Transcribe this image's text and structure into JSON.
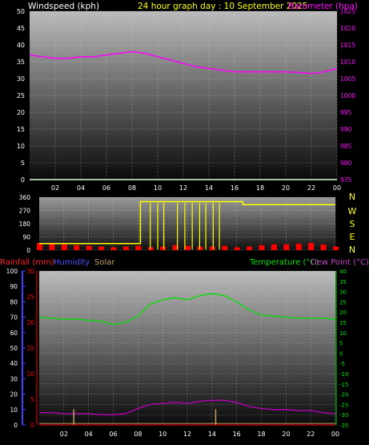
{
  "header": {
    "left_label": "Windspeed (kph)",
    "center_label": "24 hour graph day : 10 September 2025",
    "right_label": "Barometer (hpa)"
  },
  "colors": {
    "wind": "#ffffff",
    "barometer": "#ff00ff",
    "header_center": "#ffff00",
    "direction": "#ffff00",
    "rain": "#ff0000",
    "humidity": "#4040ff",
    "solar": "#c0a060",
    "temperature": "#00e000",
    "dewpoint": "#c000c0"
  },
  "x_ticks": [
    "02",
    "04",
    "06",
    "08",
    "10",
    "12",
    "14",
    "16",
    "18",
    "20",
    "22",
    "00"
  ],
  "compass_labels": [
    "N",
    "W",
    "S",
    "E",
    "N"
  ],
  "legend2": {
    "rainfall": "Rainfall (mm)",
    "humidity": "Humidity",
    "solar": "Solar",
    "temperature": "Temperature (°C)",
    "dewpoint": "Dew Point (°C)"
  },
  "chart_data": [
    {
      "type": "line",
      "title": "24 hour graph day : 10 September 2025",
      "xlabel": "",
      "ylabel": "Windspeed (kph)",
      "y2label": "Barometer (hpa)",
      "x_range_hours": [
        0,
        24
      ],
      "ylim": [
        0,
        50
      ],
      "y_ticks": [
        0,
        5,
        10,
        15,
        20,
        25,
        30,
        35,
        40,
        45,
        50
      ],
      "y2lim": [
        975,
        1025
      ],
      "y2_ticks": [
        975,
        980,
        985,
        990,
        995,
        1000,
        1005,
        1010,
        1015,
        1020,
        1025
      ],
      "series": [
        {
          "name": "Windspeed (kph)",
          "axis": "left",
          "x": [
            0,
            24
          ],
          "values": [
            0,
            0
          ]
        },
        {
          "name": "Barometer (hpa)",
          "axis": "right",
          "x": [
            0,
            1,
            2,
            3,
            4,
            5,
            6,
            7,
            8,
            9,
            10,
            11,
            12,
            13,
            14,
            15,
            16,
            17,
            18,
            19,
            20,
            21,
            22,
            23,
            24
          ],
          "values": [
            1012,
            1011.5,
            1011,
            1011,
            1011.5,
            1011.5,
            1012,
            1012.5,
            1013,
            1012.5,
            1011.5,
            1010.5,
            1009.5,
            1008.5,
            1008,
            1007.5,
            1007,
            1007,
            1007,
            1007,
            1007,
            1006.8,
            1006.5,
            1007,
            1008
          ]
        }
      ],
      "grid": true
    },
    {
      "type": "scatter",
      "title": "",
      "ylabel": "",
      "x_range_hours": [
        0,
        24
      ],
      "ylim": [
        0,
        360
      ],
      "y_ticks": [
        0,
        90,
        180,
        270,
        360
      ],
      "series": [
        {
          "name": "Wind direction",
          "x": [
            0,
            8.2,
            8.2,
            16.5,
            16.5,
            24
          ],
          "values": [
            45,
            45,
            330,
            330,
            310,
            310
          ]
        },
        {
          "name": "Wind speed",
          "x": [
            0,
            1,
            2,
            3,
            4,
            5,
            6,
            7,
            8,
            9,
            10,
            11,
            12,
            13,
            14,
            15,
            16,
            17,
            18,
            19,
            20,
            21,
            22,
            23,
            24
          ],
          "values": [
            1,
            1,
            0.8,
            0.7,
            0.6,
            0.5,
            0.4,
            0.5,
            0.6,
            0.4,
            0.5,
            0.7,
            0.6,
            0.5,
            0.5,
            0.6,
            0.4,
            0.5,
            0.7,
            0.8,
            0.8,
            0.9,
            1,
            0.8,
            0.5
          ]
        }
      ],
      "grid": true
    },
    {
      "type": "line",
      "title": "",
      "y_left1_label": "Humidity",
      "y_left1_lim": [
        0,
        100
      ],
      "y_left1_ticks": [
        0,
        10,
        20,
        30,
        40,
        50,
        60,
        70,
        80,
        90,
        100
      ],
      "y_left2_label": "Rainfall (mm)",
      "y_left2_lim": [
        0,
        30
      ],
      "y_left2_ticks": [
        0,
        5,
        10,
        15,
        20,
        25,
        30
      ],
      "y_right_label": "Temperature (°C)",
      "y_right_lim": [
        -35,
        40
      ],
      "y_right_ticks": [
        -35,
        -30,
        -25,
        -20,
        -15,
        -10,
        -5,
        0,
        5,
        10,
        15,
        20,
        25,
        30,
        35,
        40
      ],
      "x_range_hours": [
        0,
        24
      ],
      "series": [
        {
          "name": "Temperature (°C)",
          "axis": "right",
          "x": [
            0,
            1,
            2,
            3,
            4,
            5,
            6,
            7,
            8,
            9,
            10,
            11,
            12,
            13,
            14,
            15,
            16,
            17,
            18,
            19,
            20,
            21,
            22,
            23,
            24
          ],
          "values": [
            17.5,
            17,
            16.5,
            16.5,
            16,
            15.5,
            14,
            15,
            18,
            24,
            26,
            27,
            26,
            28,
            29,
            28,
            25,
            21,
            18.5,
            18,
            17.5,
            17,
            17,
            17,
            16.5
          ]
        },
        {
          "name": "Dew Point (°C)",
          "axis": "right",
          "x": [
            0,
            1,
            2,
            3,
            4,
            5,
            6,
            7,
            8,
            9,
            10,
            11,
            12,
            13,
            14,
            15,
            16,
            17,
            18,
            19,
            20,
            21,
            22,
            23,
            24
          ],
          "values": [
            -29,
            -29,
            -29.5,
            -29.5,
            -29.5,
            -30,
            -30,
            -29.5,
            -27,
            -25,
            -24.5,
            -24,
            -24.5,
            -23.5,
            -23,
            -23,
            -24,
            -26,
            -27,
            -27.5,
            -27.5,
            -28,
            -28,
            -29,
            -29.5
          ]
        },
        {
          "name": "Solar",
          "axis": "left1",
          "x": [
            2.8,
            14.3
          ],
          "values": [
            5,
            5
          ]
        },
        {
          "name": "Rainfall (mm)",
          "axis": "left2",
          "x": [
            0,
            24
          ],
          "values": [
            0,
            0
          ]
        }
      ],
      "grid": true
    }
  ]
}
